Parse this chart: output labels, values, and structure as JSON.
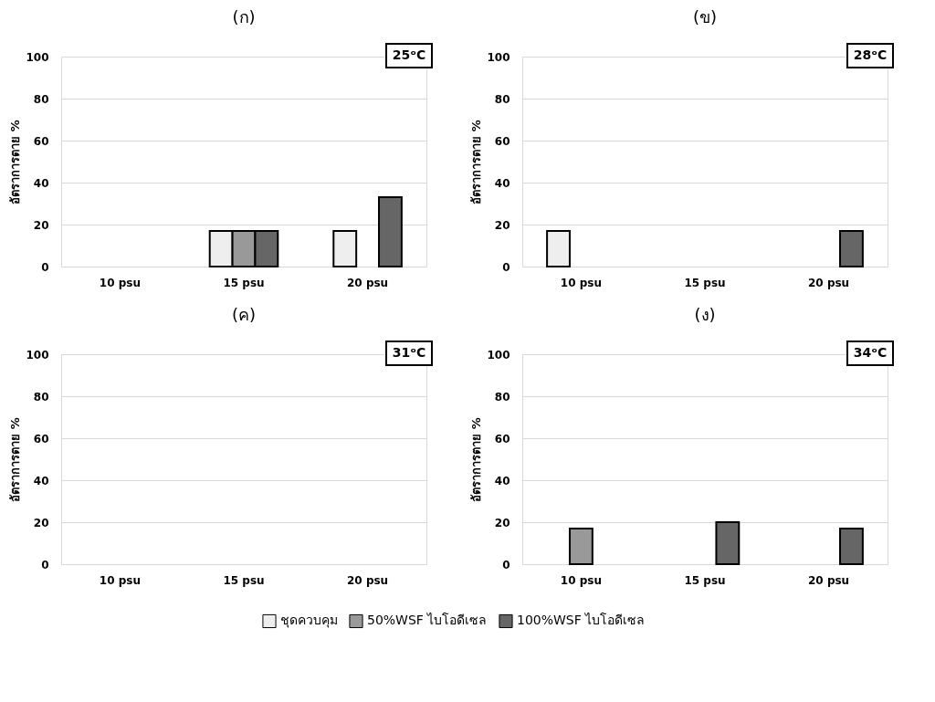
{
  "chart_data": [
    {
      "type": "bar",
      "title": "(ก)",
      "ylabel": "อัตราการตาย %",
      "categories": [
        "10 psu",
        "15 psu",
        "20 psu"
      ],
      "series": [
        {
          "name": "ชุดควบคุม",
          "color": "#eeeeee",
          "values": [
            null,
            17,
            17
          ]
        },
        {
          "name": "50%WSF ไบโอดีเซล",
          "color": "#999999",
          "values": [
            null,
            17,
            null
          ]
        },
        {
          "name": "100%WSF ไบโอดีเซล",
          "color": "#666666",
          "values": [
            null,
            17,
            33
          ]
        }
      ],
      "ylim": [
        0,
        100
      ],
      "yticks": [
        0,
        20,
        40,
        60,
        80,
        100
      ],
      "grid": "y",
      "legend": "bottom",
      "annotations": [
        "25ᵒC"
      ]
    },
    {
      "type": "bar",
      "title": "(ข)",
      "ylabel": "อัตราการตาย %",
      "categories": [
        "10 psu",
        "15 psu",
        "20 psu"
      ],
      "series": [
        {
          "name": "ชุดควบคุม",
          "color": "#eeeeee",
          "values": [
            17,
            null,
            null
          ]
        },
        {
          "name": "50%WSF ไบโอดีเซล",
          "color": "#999999",
          "values": [
            null,
            null,
            null
          ]
        },
        {
          "name": "100%WSF ไบโอดีเซล",
          "color": "#666666",
          "values": [
            null,
            null,
            17
          ]
        }
      ],
      "ylim": [
        0,
        100
      ],
      "yticks": [
        0,
        20,
        40,
        60,
        80,
        100
      ],
      "grid": "y",
      "legend": "bottom",
      "annotations": [
        "28ᵒC"
      ]
    },
    {
      "type": "bar",
      "title": "(ค)",
      "ylabel": "อัตราการตาย %",
      "categories": [
        "10 psu",
        "15 psu",
        "20 psu"
      ],
      "series": [
        {
          "name": "ชุดควบคุม",
          "color": "#eeeeee",
          "values": [
            null,
            null,
            null
          ]
        },
        {
          "name": "50%WSF ไบโอดีเซล",
          "color": "#999999",
          "values": [
            null,
            null,
            null
          ]
        },
        {
          "name": "100%WSF ไบโอดีเซล",
          "color": "#666666",
          "values": [
            null,
            null,
            null
          ]
        }
      ],
      "ylim": [
        0,
        100
      ],
      "yticks": [
        0,
        20,
        40,
        60,
        80,
        100
      ],
      "grid": "y",
      "annotations": [
        "31ᵒC"
      ]
    },
    {
      "type": "bar",
      "title": "(ง)",
      "ylabel": "อัตราการตาย %",
      "categories": [
        "10 psu",
        "15 psu",
        "20 psu"
      ],
      "series": [
        {
          "name": "ชุดควบคุม",
          "color": "#eeeeee",
          "values": [
            null,
            null,
            null
          ]
        },
        {
          "name": "50%WSF ไบโอดีเซล",
          "color": "#999999",
          "values": [
            17,
            null,
            null
          ]
        },
        {
          "name": "100%WSF ไบโอดีเซล",
          "color": "#666666",
          "values": [
            null,
            20,
            17
          ]
        }
      ],
      "ylim": [
        0,
        100
      ],
      "yticks": [
        0,
        20,
        40,
        60,
        80,
        100
      ],
      "grid": "y",
      "legend": "bottom",
      "annotations": [
        "34ᵒC"
      ]
    }
  ]
}
